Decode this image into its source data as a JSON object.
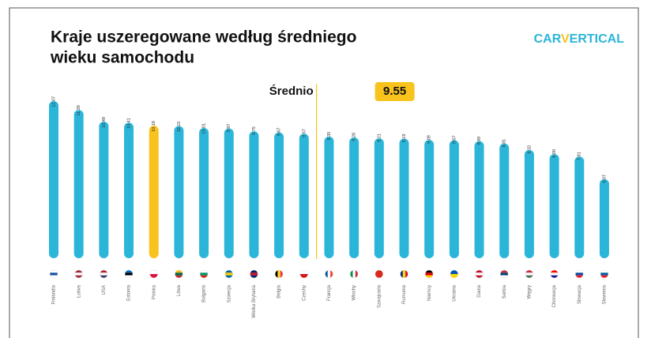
{
  "chart_data": {
    "type": "bar",
    "title": [
      "Kraje uszeregowane według średniego",
      "wieku samochodu"
    ],
    "logo": [
      "CAR",
      "V",
      "ERTICAL"
    ],
    "categories": [
      "Finlandia",
      "Łotwa",
      "USA",
      "Estonia",
      "Polska",
      "Litwa",
      "Bułgaria",
      "Szwecja",
      "Wielka Brytania",
      "Belgia",
      "Czechy",
      "Francja",
      "Włochy",
      "Szwajcaria",
      "Rumunia",
      "Niemcy",
      "Ukraina",
      "Dania",
      "Serbia",
      "Węgry",
      "Chorwacja",
      "Słowacja",
      "Słowenia"
    ],
    "values": [
      12.07,
      11.39,
      10.49,
      10.41,
      10.18,
      10.15,
      10.01,
      9.97,
      9.75,
      9.67,
      9.57,
      9.35,
      9.28,
      9.21,
      9.19,
      9.09,
      9.07,
      8.99,
      8.81,
      8.32,
      8.0,
      7.81,
      6.07
    ],
    "value_labels": [
      "12.07",
      "11.39",
      "10.49",
      "10.41",
      "10.18",
      "10.15",
      "10.01",
      "9.97",
      "9.75",
      "9.67",
      "9.57",
      "9.35",
      "9.28",
      "9.21",
      "9.19",
      "9.09",
      "9.07",
      "8.99",
      "8.81",
      "8.32",
      "8.00",
      "7.81",
      "6.07"
    ],
    "color": "#2bb6d9",
    "highlight": 4,
    "highlight_color": "#f8c31c",
    "average": {
      "label": "Średnio",
      "value": 9.55
    }
  }
}
